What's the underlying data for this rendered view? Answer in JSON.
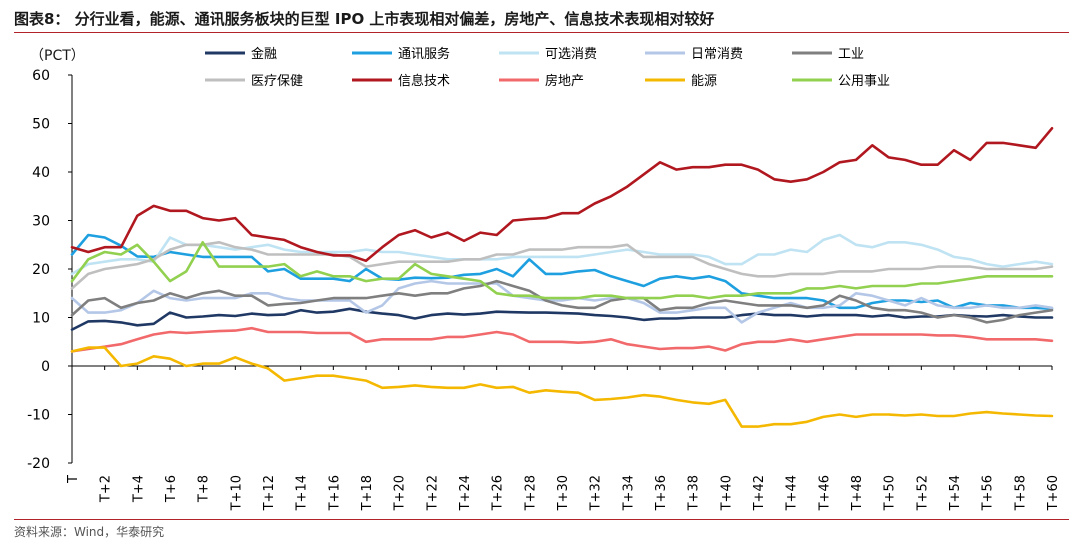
{
  "header": {
    "title": "图表8：  分行业看，能源、通讯服务板块的巨型 IPO 上市表现相对偏差，房地产、信息技术表现相对较好"
  },
  "footer": {
    "source": "资料来源：Wind，华泰研究"
  },
  "chart_data": {
    "type": "line",
    "unit_label": "（PCT）",
    "ylim": [
      -20,
      60
    ],
    "yticks": [
      -20,
      -10,
      0,
      10,
      20,
      30,
      40,
      50,
      60
    ],
    "x": [
      0,
      1,
      2,
      3,
      4,
      5,
      6,
      7,
      8,
      9,
      10,
      11,
      12,
      13,
      14,
      15,
      16,
      17,
      18,
      19,
      20,
      21,
      22,
      23,
      24,
      25,
      26,
      27,
      28,
      29,
      30,
      31,
      32,
      33,
      34,
      35,
      36,
      37,
      38,
      39,
      40,
      41,
      42,
      43,
      44,
      45,
      46,
      47,
      48,
      49,
      50,
      51,
      52,
      53,
      54,
      55,
      56,
      57,
      58,
      59,
      60
    ],
    "xtick_labels": [
      "T",
      "T+2",
      "T+4",
      "T+6",
      "T+8",
      "T+10",
      "T+12",
      "T+14",
      "T+16",
      "T+18",
      "T+20",
      "T+22",
      "T+24",
      "T+26",
      "T+28",
      "T+30",
      "T+32",
      "T+34",
      "T+36",
      "T+38",
      "T+40",
      "T+42",
      "T+44",
      "T+46",
      "T+48",
      "T+50",
      "T+52",
      "T+54",
      "T+56",
      "T+58",
      "T+60"
    ],
    "grid": false,
    "legend_position": "top",
    "series": [
      {
        "name": "金融",
        "color": "#1f3864",
        "values": [
          7.5,
          9.2,
          9.3,
          9,
          8.4,
          8.7,
          11,
          10,
          10.2,
          10.5,
          10.3,
          10.8,
          10.5,
          10.6,
          11.5,
          11,
          11.2,
          11.8,
          11.2,
          10.8,
          10.5,
          9.8,
          10.5,
          10.8,
          10.6,
          10.8,
          11.2,
          11.1,
          11,
          11,
          10.9,
          10.8,
          10.5,
          10.3,
          10,
          9.5,
          9.8,
          9.8,
          10,
          10,
          10,
          10.5,
          10.8,
          10.5,
          10.5,
          10.2,
          10.5,
          10.5,
          10.5,
          10.2,
          10.5,
          10,
          10.2,
          10.2,
          10.5,
          10.3,
          10.2,
          10.5,
          10.2,
          10,
          10
        ]
      },
      {
        "name": "通讯服务",
        "color": "#1ea0e0",
        "values": [
          23,
          27,
          26.5,
          24.8,
          22.6,
          22.5,
          23.5,
          23,
          22.5,
          22.5,
          22.5,
          22.5,
          19.5,
          20,
          18,
          18,
          18,
          17.5,
          20,
          18,
          17.8,
          18.2,
          18.1,
          18.2,
          18.8,
          19,
          20,
          18.5,
          22,
          19,
          19,
          19.5,
          19.8,
          18.5,
          17.5,
          16.5,
          18,
          18.5,
          18,
          18.5,
          17.5,
          15,
          14.5,
          14,
          14,
          14,
          13.5,
          12,
          12,
          13,
          13.5,
          13.5,
          13.2,
          13.5,
          12,
          13,
          12.5,
          12.5,
          12,
          12,
          11.8
        ]
      },
      {
        "name": "可选消费",
        "color": "#bfe3f2",
        "values": [
          19,
          21,
          21.5,
          22,
          22,
          21.5,
          26.5,
          25,
          25,
          24.5,
          24,
          24.5,
          25,
          24,
          23.5,
          23.5,
          23.5,
          23.5,
          24,
          23.5,
          23.5,
          23,
          22.5,
          22,
          22,
          22,
          22,
          22.5,
          22.5,
          22.5,
          22.5,
          22.5,
          23,
          23.5,
          24,
          23.5,
          23,
          23,
          23,
          22.5,
          21,
          21,
          23,
          23,
          24,
          23.5,
          26,
          27,
          25,
          24.5,
          25.5,
          25.5,
          25,
          24,
          22.5,
          22,
          21,
          20.5,
          21,
          21.5,
          21
        ]
      },
      {
        "name": "日常消费",
        "color": "#b4c7e7",
        "values": [
          14,
          11,
          11,
          11.5,
          13,
          15.5,
          14,
          13.5,
          14,
          14,
          14,
          15,
          15,
          14,
          13.5,
          13.5,
          13.5,
          13.5,
          11,
          12.5,
          16,
          17,
          17.5,
          17,
          17,
          17,
          17,
          14.5,
          14,
          13.5,
          13.5,
          14,
          13.5,
          14,
          14,
          13,
          11,
          11,
          11.5,
          12,
          12,
          9,
          11,
          12,
          13,
          12,
          12,
          12.5,
          15,
          14.5,
          13.5,
          12.5,
          14,
          12.5,
          12,
          12,
          12.5,
          12,
          12,
          12.5,
          12
        ]
      },
      {
        "name": "工业",
        "color": "#7f7f7f",
        "values": [
          10.5,
          13.5,
          14,
          12,
          13,
          13.5,
          15,
          14,
          15,
          15.5,
          14.5,
          14.5,
          12.5,
          12.8,
          13,
          13.5,
          14,
          14,
          14,
          14.5,
          15,
          14.5,
          15,
          15,
          16,
          16.5,
          17.5,
          16.5,
          15.5,
          13.5,
          12.5,
          12,
          12,
          13.5,
          14,
          14,
          11.5,
          12,
          12,
          13,
          13.5,
          13,
          12.5,
          12.5,
          12.5,
          12,
          12.5,
          14.5,
          13.5,
          12,
          11.5,
          11.5,
          11,
          10,
          10.5,
          10,
          9,
          9.5,
          10.5,
          11,
          11.5
        ]
      },
      {
        "name": "医疗保健",
        "color": "#bfbfbf",
        "values": [
          16,
          19,
          20,
          20.5,
          21,
          22,
          24,
          25,
          25,
          25.5,
          24.5,
          24,
          23,
          23,
          23,
          23,
          23,
          22.5,
          20.5,
          21,
          21.5,
          21.5,
          21.5,
          21.5,
          22,
          22,
          23,
          23,
          24,
          24,
          24,
          24.5,
          24.5,
          24.5,
          25,
          22.5,
          22.5,
          22.5,
          22.5,
          21,
          20,
          19,
          18.5,
          18.5,
          19,
          19,
          19,
          19.5,
          19.5,
          19.5,
          20,
          20,
          20,
          20.5,
          20.5,
          20.5,
          20,
          20,
          20,
          20,
          20.5
        ]
      },
      {
        "name": "信息技术",
        "color": "#b0171f",
        "values": [
          24.5,
          23.5,
          24.5,
          24.5,
          31,
          33,
          32,
          32,
          30.5,
          30,
          30.5,
          27,
          26.5,
          26,
          24.5,
          23.5,
          22.8,
          22.8,
          21.7,
          24.5,
          27,
          28,
          26.5,
          27.5,
          25.8,
          27.5,
          27,
          30,
          30.3,
          30.5,
          31.5,
          31.5,
          33.5,
          35,
          37,
          39.5,
          42,
          40.5,
          41,
          41,
          41.5,
          41.5,
          40.5,
          38.5,
          38,
          38.5,
          40,
          42,
          42.5,
          45.5,
          43,
          42.5,
          41.5,
          41.5,
          44.5,
          42.5,
          46,
          46,
          45.5,
          45,
          49
        ]
      },
      {
        "name": "房地产",
        "color": "#f2696b",
        "values": [
          3,
          3.5,
          4,
          4.5,
          5.5,
          6.5,
          7,
          6.8,
          7,
          7.2,
          7.3,
          7.8,
          7,
          7,
          7,
          6.8,
          6.8,
          6.8,
          5,
          5.5,
          5.5,
          5.5,
          5.5,
          6,
          6,
          6.5,
          7,
          6.5,
          5,
          5,
          5,
          4.8,
          5,
          5.5,
          4.5,
          4,
          3.5,
          3.7,
          3.7,
          4,
          3.2,
          4.5,
          5,
          5,
          5.5,
          5,
          5.5,
          6,
          6.5,
          6.5,
          6.5,
          6.5,
          6.5,
          6.3,
          6.3,
          6,
          5.5,
          5.5,
          5.5,
          5.5,
          5.2
        ]
      },
      {
        "name": "能源",
        "color": "#f5b800",
        "values": [
          3,
          3.8,
          3.8,
          0,
          0.5,
          2,
          1.5,
          0,
          0.5,
          0.5,
          1.8,
          0.5,
          -0.5,
          -3,
          -2.5,
          -2,
          -2,
          -2.5,
          -3,
          -4.5,
          -4.3,
          -4,
          -4.3,
          -4.5,
          -4.5,
          -3.8,
          -4.5,
          -4.3,
          -5.5,
          -5,
          -5.3,
          -5.5,
          -7,
          -6.8,
          -6.5,
          -6,
          -6.3,
          -7,
          -7.5,
          -7.8,
          -7,
          -12.5,
          -12.5,
          -12,
          -12,
          -11.5,
          -10.5,
          -10,
          -10.5,
          -10,
          -10,
          -10.2,
          -10,
          -10.3,
          -10.3,
          -9.8,
          -9.5,
          -9.8,
          -10,
          -10.2,
          -10.3
        ]
      },
      {
        "name": "公用事业",
        "color": "#92d050",
        "values": [
          17.5,
          22,
          23.5,
          23,
          25,
          21.5,
          17.5,
          19.5,
          25.5,
          20.5,
          20.5,
          20.5,
          20.5,
          21,
          18.5,
          19.5,
          18.5,
          18.5,
          17.5,
          18,
          18,
          21,
          19,
          18.5,
          18,
          17.5,
          15,
          14.5,
          14.5,
          14,
          14,
          14,
          14.5,
          14.5,
          14,
          14,
          14,
          14.5,
          14.5,
          14,
          14.5,
          14.5,
          15,
          15,
          15,
          16,
          16,
          16.5,
          16,
          16.5,
          16.5,
          16.5,
          17,
          17,
          17.5,
          18,
          18.5,
          18.5,
          18.5,
          18.5,
          18.5
        ]
      }
    ]
  }
}
